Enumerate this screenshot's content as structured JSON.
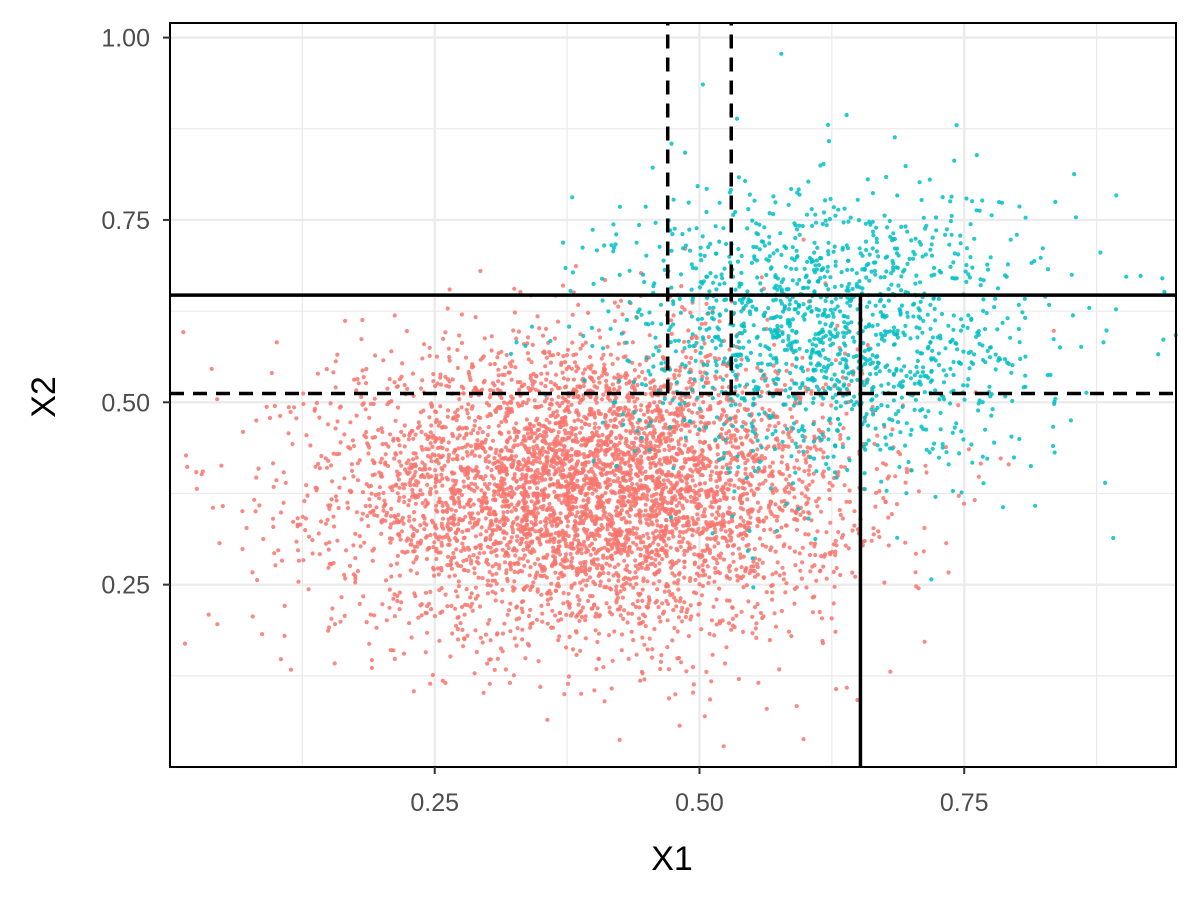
{
  "chart_data": {
    "type": "scatter",
    "title": "",
    "xlabel": "X1",
    "ylabel": "X2",
    "xlim": [
      0.0,
      0.95
    ],
    "ylim": [
      0.0,
      1.02
    ],
    "x_ticks": [
      0.25,
      0.5,
      0.75
    ],
    "x_tick_labels": [
      "0.25",
      "0.50",
      "0.75"
    ],
    "y_ticks": [
      0.25,
      0.5,
      0.75,
      1.0
    ],
    "y_tick_labels": [
      "0.25",
      "0.50",
      "0.75",
      "1.00"
    ],
    "grid": true,
    "legend": "none",
    "series": [
      {
        "color": "#F8766D",
        "n_points": 5000,
        "distribution": "bivariate normal",
        "mean": [
          0.4,
          0.38
        ],
        "sd": [
          0.12,
          0.1
        ]
      },
      {
        "color": "#00BFC4",
        "n_points": 1500,
        "distribution": "bivariate normal",
        "mean": [
          0.62,
          0.6
        ],
        "sd": [
          0.1,
          0.1
        ]
      }
    ],
    "reference_lines": [
      {
        "orientation": "horizontal",
        "value": 0.647,
        "from": 0.0,
        "to": 0.95,
        "style": "solid"
      },
      {
        "orientation": "vertical",
        "value": 0.652,
        "from": 0.0,
        "to": 0.647,
        "style": "solid"
      },
      {
        "orientation": "horizontal",
        "value": 0.512,
        "from": 0.0,
        "to": 0.95,
        "style": "dashed"
      },
      {
        "orientation": "vertical",
        "value": 0.47,
        "from": 0.512,
        "to": 1.02,
        "style": "dashed"
      },
      {
        "orientation": "vertical",
        "value": 0.53,
        "from": 0.512,
        "to": 1.02,
        "style": "dashed"
      }
    ]
  }
}
